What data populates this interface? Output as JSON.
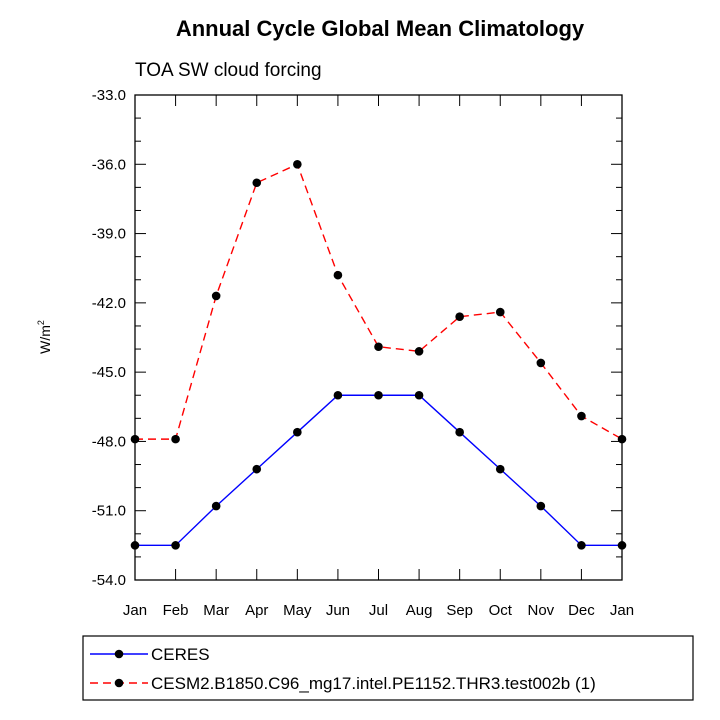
{
  "chart_data": {
    "type": "line",
    "title": "Annual Cycle Global Mean Climatology",
    "subtitle": "TOA SW cloud forcing",
    "ylabel": "W/m",
    "ylabel_superscript": "2",
    "xlabel": "",
    "ylim": [
      -54.0,
      -33.0
    ],
    "yticks": [
      "-33.0",
      "-36.0",
      "-39.0",
      "-42.0",
      "-45.0",
      "-48.0",
      "-51.0",
      "-54.0"
    ],
    "ytick_values": [
      -33,
      -36,
      -39,
      -42,
      -45,
      -48,
      -51,
      -54
    ],
    "categories": [
      "Jan",
      "Feb",
      "Mar",
      "Apr",
      "May",
      "Jun",
      "Jul",
      "Aug",
      "Sep",
      "Oct",
      "Nov",
      "Dec",
      "Jan"
    ],
    "series": [
      {
        "name": "CERES",
        "color": "#0000ff",
        "dash": "solid",
        "values": [
          -52.5,
          -52.5,
          -50.8,
          -49.2,
          -47.6,
          -46.0,
          -46.0,
          -46.0,
          -47.6,
          -49.2,
          -50.8,
          -52.5,
          -52.5
        ]
      },
      {
        "name": "CESM2.B1850.C96_mg17.intel.PE1152.THR3.test002b (1)",
        "color": "#ff0000",
        "dash": "dashed",
        "values": [
          -47.9,
          -47.9,
          -41.7,
          -36.8,
          -36.0,
          -40.8,
          -43.9,
          -44.1,
          -42.6,
          -42.4,
          -44.6,
          -46.9,
          -47.9
        ]
      }
    ]
  }
}
